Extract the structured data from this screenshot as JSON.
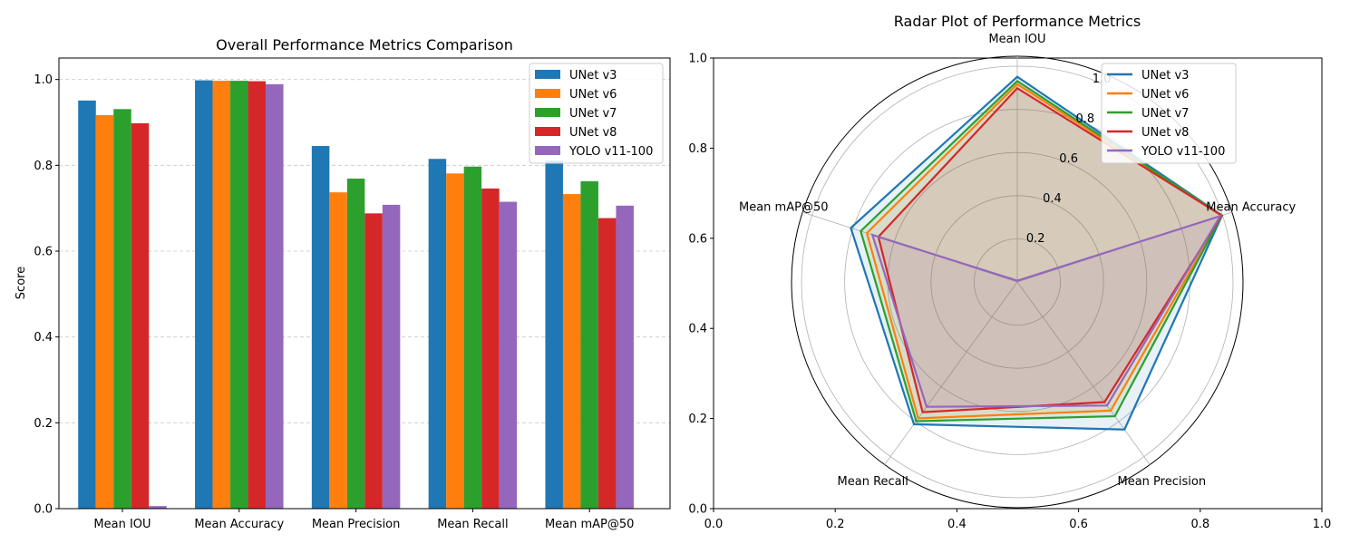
{
  "chart_data": [
    {
      "type": "bar",
      "title": "Overall Performance Metrics Comparison",
      "xlabel": "",
      "ylabel": "Score",
      "ylim": [
        0,
        1.05
      ],
      "yticks": [
        "0.0",
        "0.2",
        "0.4",
        "0.6",
        "0.8",
        "1.0"
      ],
      "grid": "y dashed",
      "legend_position": "top-right",
      "categories": [
        "Mean IOU",
        "Mean Accuracy",
        "Mean Precision",
        "Mean Recall",
        "Mean mAP@50"
      ],
      "series": [
        {
          "name": "UNet v3",
          "color": "#1f77b4",
          "values": [
            0.951,
            0.998,
            0.845,
            0.815,
            0.811
          ]
        },
        {
          "name": "UNet v6",
          "color": "#ff7f0e",
          "values": [
            0.917,
            0.997,
            0.737,
            0.781,
            0.733
          ]
        },
        {
          "name": "UNet v7",
          "color": "#2ca02c",
          "values": [
            0.931,
            0.997,
            0.769,
            0.797,
            0.763
          ]
        },
        {
          "name": "UNet v8",
          "color": "#d62728",
          "values": [
            0.898,
            0.996,
            0.688,
            0.746,
            0.677
          ]
        },
        {
          "name": "YOLO v11-100",
          "color": "#9467bd",
          "values": [
            0.006,
            0.989,
            0.708,
            0.715,
            0.706
          ]
        }
      ]
    },
    {
      "type": "radar",
      "title": "Radar Plot of Performance Metrics",
      "axes": [
        "Mean IOU",
        "Mean Accuracy",
        "Mean Precision",
        "Mean Recall",
        "Mean mAP@50"
      ],
      "rlim": [
        0,
        1.0
      ],
      "rticks": [
        "0.2",
        "0.4",
        "0.6",
        "0.8",
        "1.0"
      ],
      "frame_xticks": [
        "0.0",
        "0.2",
        "0.4",
        "0.6",
        "0.8",
        "1.0"
      ],
      "frame_yticks": [
        "0.0",
        "0.2",
        "0.4",
        "0.6",
        "0.8",
        "1.0"
      ],
      "legend_position": "top-right",
      "series": [
        {
          "name": "UNet v3",
          "color": "#1f77b4",
          "values": [
            0.951,
            0.998,
            0.845,
            0.815,
            0.811
          ]
        },
        {
          "name": "UNet v6",
          "color": "#ff7f0e",
          "values": [
            0.917,
            0.997,
            0.737,
            0.781,
            0.733
          ]
        },
        {
          "name": "UNet v7",
          "color": "#2ca02c",
          "values": [
            0.931,
            0.997,
            0.769,
            0.797,
            0.763
          ]
        },
        {
          "name": "UNet v8",
          "color": "#d62728",
          "values": [
            0.898,
            0.996,
            0.688,
            0.746,
            0.677
          ]
        },
        {
          "name": "YOLO v11-100",
          "color": "#9467bd",
          "values": [
            0.006,
            0.989,
            0.708,
            0.715,
            0.706
          ]
        }
      ]
    }
  ]
}
